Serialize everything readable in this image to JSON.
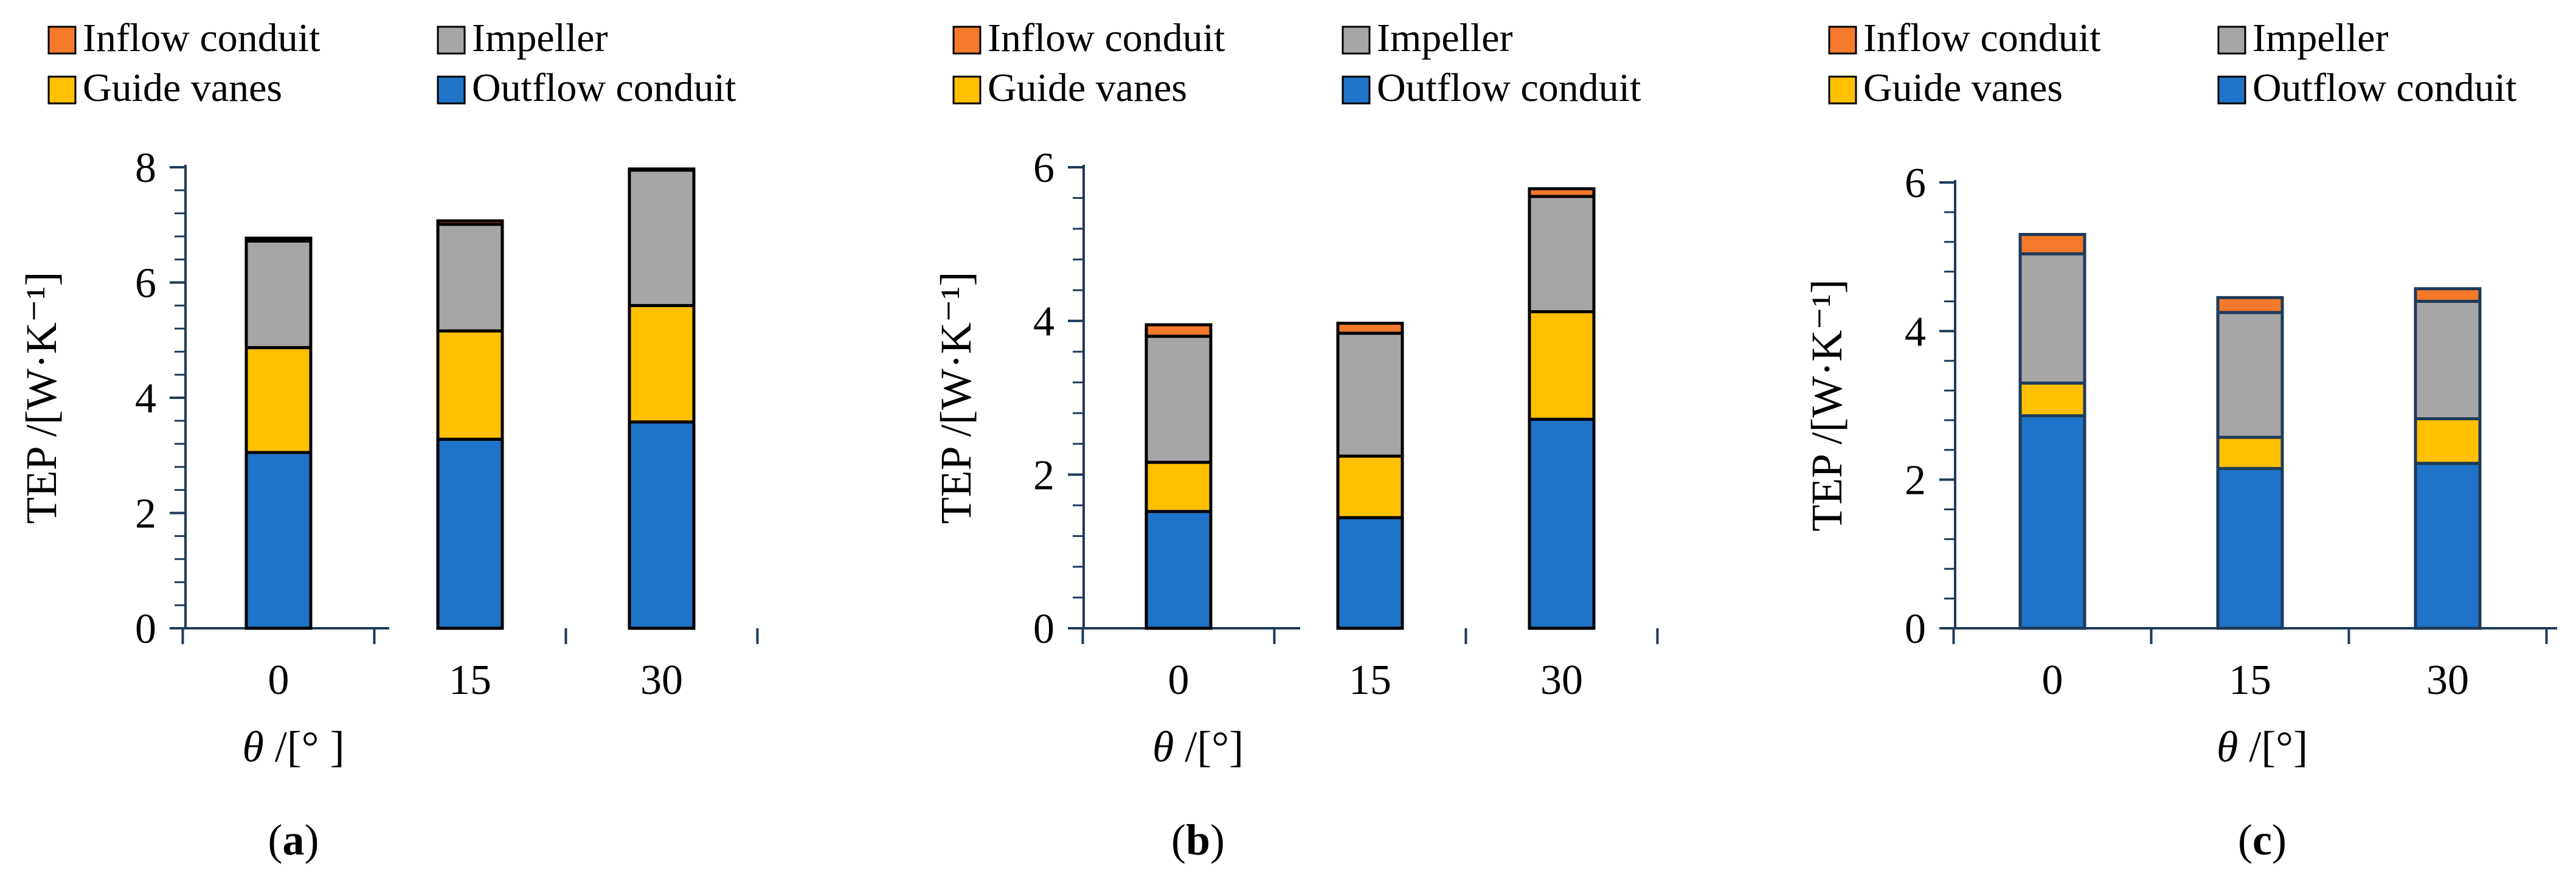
{
  "figure": {
    "legend_entries": [
      "Inflow conduit",
      "Impeller",
      "Guide vanes",
      "Outflow conduit"
    ]
  },
  "colors": {
    "Outflow conduit": "#1f73c8",
    "Guide vanes": "#ffc000",
    "Impeller": "#a6a6a6",
    "Inflow conduit": "#f5792a",
    "axis": "#1f3a5a"
  },
  "chart_data": [
    {
      "type": "bar",
      "stacked": true,
      "panel_label": "a",
      "title": "",
      "xlabel_symbol": "θ",
      "xlabel_unit": "/[°  ]",
      "ylabel": "TEP /[W·K⁻¹]",
      "categories": [
        "0",
        "15",
        "30"
      ],
      "ylim": [
        0,
        8
      ],
      "y_ticks": [
        "0",
        "2",
        "4",
        "6",
        "8"
      ],
      "y_tick_values": [
        0,
        2,
        4,
        6,
        8
      ],
      "minor_step": 0.4,
      "bar_outline": "#000000",
      "series": [
        {
          "name": "Outflow conduit",
          "values": [
            3.05,
            3.28,
            3.58
          ]
        },
        {
          "name": "Guide vanes",
          "values": [
            1.82,
            1.88,
            2.02
          ]
        },
        {
          "name": "Impeller",
          "values": [
            1.85,
            1.85,
            2.35
          ]
        },
        {
          "name": "Inflow conduit",
          "values": [
            0.05,
            0.06,
            0.02
          ]
        }
      ],
      "legend_position": "top-left"
    },
    {
      "type": "bar",
      "stacked": true,
      "panel_label": "b",
      "title": "",
      "xlabel_symbol": "θ",
      "xlabel_unit": "/[°]",
      "ylabel": "TEP /[W·K⁻¹]",
      "categories": [
        "0",
        "15",
        "30"
      ],
      "ylim": [
        0,
        6
      ],
      "y_ticks": [
        "0",
        "2",
        "4",
        "6"
      ],
      "y_tick_values": [
        0,
        2,
        4,
        6
      ],
      "minor_step": 0.4,
      "bar_outline": "#000000",
      "series": [
        {
          "name": "Outflow conduit",
          "values": [
            1.52,
            1.44,
            2.72
          ]
        },
        {
          "name": "Guide vanes",
          "values": [
            0.64,
            0.8,
            1.4
          ]
        },
        {
          "name": "Impeller",
          "values": [
            1.64,
            1.6,
            1.5
          ]
        },
        {
          "name": "Inflow conduit",
          "values": [
            0.15,
            0.13,
            0.1
          ]
        }
      ],
      "legend_position": "top-left"
    },
    {
      "type": "bar",
      "stacked": true,
      "panel_label": "c",
      "title": "",
      "xlabel_symbol": "θ",
      "xlabel_unit": "/[°]",
      "ylabel": "TEP /[W·K⁻¹]",
      "categories": [
        "0",
        "15",
        "30"
      ],
      "ylim": [
        0,
        6
      ],
      "y_ticks": [
        "0",
        "2",
        "4",
        "6"
      ],
      "y_tick_values": [
        0,
        2,
        4,
        6
      ],
      "minor_step": 0.4,
      "bar_outline": "#1f3a5a",
      "series": [
        {
          "name": "Outflow conduit",
          "values": [
            2.86,
            2.15,
            2.22
          ]
        },
        {
          "name": "Guide vanes",
          "values": [
            0.44,
            0.42,
            0.6
          ]
        },
        {
          "name": "Impeller",
          "values": [
            1.74,
            1.68,
            1.58
          ]
        },
        {
          "name": "Inflow conduit",
          "values": [
            0.26,
            0.2,
            0.17
          ]
        }
      ],
      "legend_position": "top-left"
    }
  ]
}
